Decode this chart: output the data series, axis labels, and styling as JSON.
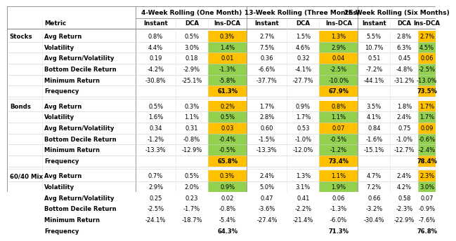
{
  "groups": [
    {
      "group_label": "Stocks",
      "rows": [
        {
          "metric": "Avg Return",
          "vals": [
            "0.8%",
            "0.5%",
            "0.3%",
            "2.7%",
            "1.5%",
            "1.3%",
            "5.5%",
            "2.8%",
            "2.7%"
          ]
        },
        {
          "metric": "Volatility",
          "vals": [
            "4.4%",
            "3.0%",
            "1.4%",
            "7.5%",
            "4.6%",
            "2.9%",
            "10.7%",
            "6.3%",
            "4.5%"
          ]
        },
        {
          "metric": "Avg Return/Volatility",
          "vals": [
            "0.19",
            "0.18",
            "0.01",
            "0.36",
            "0.32",
            "0.04",
            "0.51",
            "0.45",
            "0.06"
          ]
        },
        {
          "metric": "Bottom Decile Return",
          "vals": [
            "-4.2%",
            "-2.9%",
            "-1.3%",
            "-6.6%",
            "-4.1%",
            "-2.5%",
            "-7.2%",
            "-4.8%",
            "-2.5%"
          ]
        },
        {
          "metric": "Minimum Return",
          "vals": [
            "-30.8%",
            "-25.1%",
            "-5.8%",
            "-37.7%",
            "-27.7%",
            "-10.0%",
            "-44.1%",
            "-31.2%",
            "-13.0%"
          ]
        },
        {
          "metric": "Frequency",
          "vals": [
            "",
            "",
            "61.3%",
            "",
            "",
            "67.9%",
            "",
            "",
            "73.5%"
          ]
        }
      ]
    },
    {
      "group_label": "Bonds",
      "rows": [
        {
          "metric": "Avg Return",
          "vals": [
            "0.5%",
            "0.3%",
            "0.2%",
            "1.7%",
            "0.9%",
            "0.8%",
            "3.5%",
            "1.8%",
            "1.7%"
          ]
        },
        {
          "metric": "Volatility",
          "vals": [
            "1.6%",
            "1.1%",
            "0.5%",
            "2.8%",
            "1.7%",
            "1.1%",
            "4.1%",
            "2.4%",
            "1.7%"
          ]
        },
        {
          "metric": "Avg Return/Volatility",
          "vals": [
            "0.34",
            "0.31",
            "0.03",
            "0.60",
            "0.53",
            "0.07",
            "0.84",
            "0.75",
            "0.09"
          ]
        },
        {
          "metric": "Bottom Decile Return",
          "vals": [
            "-1.2%",
            "-0.8%",
            "-0.4%",
            "-1.5%",
            "-1.0%",
            "-0.5%",
            "-1.6%",
            "-1.0%",
            "-0.6%"
          ]
        },
        {
          "metric": "Minimum Return",
          "vals": [
            "-13.3%",
            "-12.9%",
            "-0.5%",
            "-13.3%",
            "-12.0%",
            "-1.2%",
            "-15.1%",
            "-12.7%",
            "-2.4%"
          ]
        },
        {
          "metric": "Frequency",
          "vals": [
            "",
            "",
            "65.8%",
            "",
            "",
            "73.4%",
            "",
            "",
            "78.4%"
          ]
        }
      ]
    },
    {
      "group_label": "60/40 Mix",
      "rows": [
        {
          "metric": "Avg Return",
          "vals": [
            "0.7%",
            "0.5%",
            "0.3%",
            "2.4%",
            "1.3%",
            "1.1%",
            "4.7%",
            "2.4%",
            "2.3%"
          ]
        },
        {
          "metric": "Volatility",
          "vals": [
            "2.9%",
            "2.0%",
            "0.9%",
            "5.0%",
            "3.1%",
            "1.9%",
            "7.2%",
            "4.2%",
            "3.0%"
          ]
        },
        {
          "metric": "Avg Return/Volatility",
          "vals": [
            "0.25",
            "0.23",
            "0.02",
            "0.47",
            "0.41",
            "0.06",
            "0.66",
            "0.58",
            "0.07"
          ]
        },
        {
          "metric": "Bottom Decile Return",
          "vals": [
            "-2.5%",
            "-1.7%",
            "-0.8%",
            "-3.6%",
            "-2.2%",
            "-1.3%",
            "-3.2%",
            "-2.3%",
            "-0.9%"
          ]
        },
        {
          "metric": "Minimum Return",
          "vals": [
            "-24.1%",
            "-18.7%",
            "-5.4%",
            "-27.4%",
            "-21.4%",
            "-6.0%",
            "-30.4%",
            "-22.9%",
            "-7.6%"
          ]
        },
        {
          "metric": "Frequency",
          "vals": [
            "",
            "",
            "64.3%",
            "",
            "",
            "71.3%",
            "",
            "",
            "76.8%"
          ]
        }
      ]
    }
  ],
  "period_labels": [
    "4-Week Rolling (One Month)",
    "13-Week Rolling (Three Months)",
    "26-Week Rolling (Six Months)"
  ],
  "col_sub_labels": [
    "Instant",
    "DCA",
    "Ins-DCA"
  ],
  "insdca_colors": {
    "Avg Return": "#ffc000",
    "Volatility": "#92d050",
    "Avg Return/Volatility": "#ffc000",
    "Bottom Decile Return": "#92d050",
    "Minimum Return": "#92d050",
    "Frequency": "#ffc000"
  },
  "white": "#ffffff",
  "light_gray": "#e0e0e0",
  "dark_gray": "#888888",
  "black": "#000000",
  "row_separator": "#d0d0d0"
}
